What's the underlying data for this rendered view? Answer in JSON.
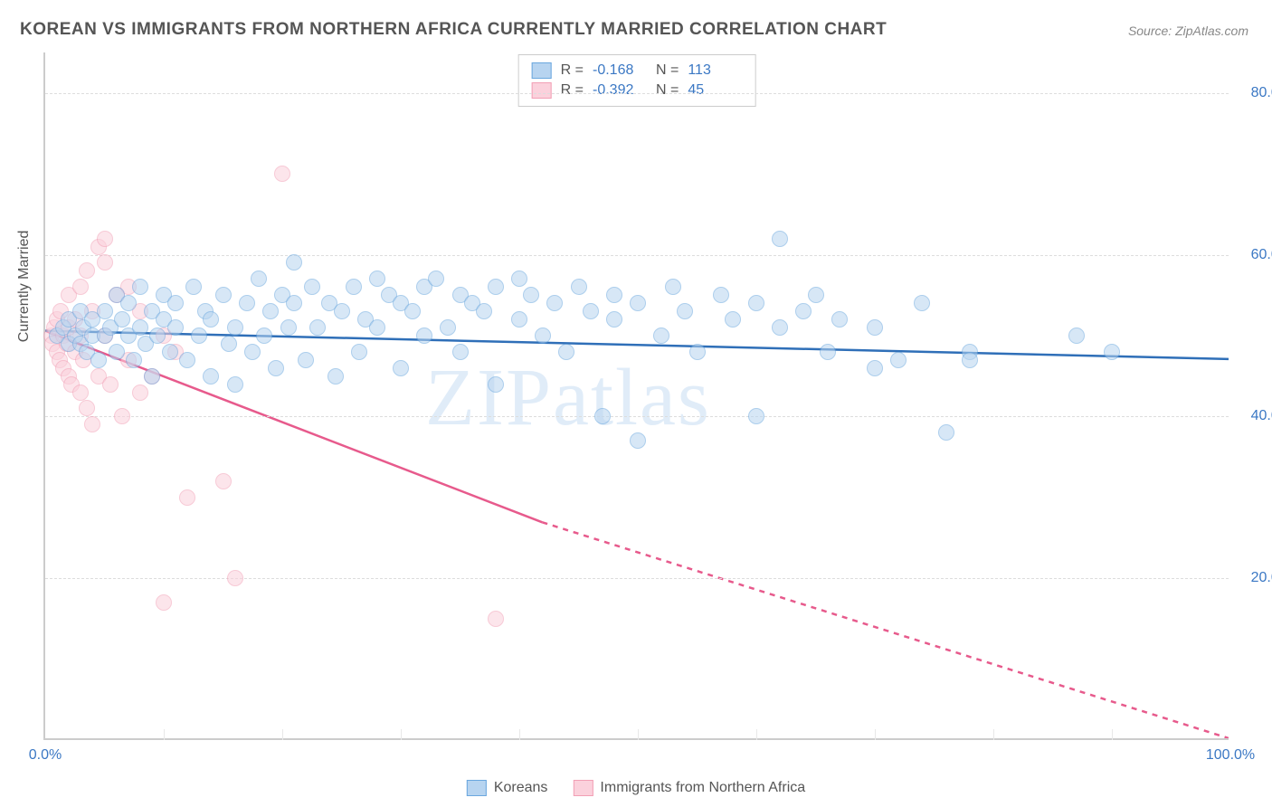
{
  "title": "KOREAN VS IMMIGRANTS FROM NORTHERN AFRICA CURRENTLY MARRIED CORRELATION CHART",
  "source": "Source: ZipAtlas.com",
  "watermark": "ZIPatlas",
  "yaxis_label": "Currently Married",
  "colors": {
    "series1_fill": "#b7d4f0",
    "series1_stroke": "#6aa7de",
    "series1_line": "#2f6fb8",
    "series2_fill": "#fbd1dc",
    "series2_stroke": "#f29fb5",
    "series2_line": "#e75a8c",
    "grid": "#dddddd",
    "axis": "#cccccc",
    "tick_text": "#3b78c4",
    "title_text": "#555555"
  },
  "chart": {
    "type": "scatter",
    "xlim": [
      0,
      100
    ],
    "ylim": [
      0,
      85
    ],
    "yticks": [
      20,
      40,
      60,
      80
    ],
    "ytick_labels": [
      "20.0%",
      "40.0%",
      "60.0%",
      "80.0%"
    ],
    "xticks": [
      0,
      100
    ],
    "xtick_minor": [
      10,
      20,
      30,
      40,
      50,
      60,
      70,
      80,
      90
    ],
    "xtick_labels": [
      "0.0%",
      "100.0%"
    ],
    "marker_radius": 9,
    "marker_opacity": 0.55,
    "line_width": 2.5
  },
  "top_legend": [
    {
      "swatch": "series1",
      "r_label": "R =",
      "r_value": "-0.168",
      "n_label": "N =",
      "n_value": "113"
    },
    {
      "swatch": "series2",
      "r_label": "R =",
      "r_value": "-0.392",
      "n_label": "N =",
      "n_value": "45"
    }
  ],
  "bottom_legend": [
    {
      "swatch": "series1",
      "label": "Koreans"
    },
    {
      "swatch": "series2",
      "label": "Immigrants from Northern Africa"
    }
  ],
  "trend_lines": {
    "series1": {
      "x1": 0,
      "y1": 50.5,
      "x2": 100,
      "y2": 47.0,
      "solid_to_x": 100
    },
    "series2": {
      "x1": 0,
      "y1": 50.5,
      "x2": 100,
      "y2": -6.0,
      "solid_to_x": 42
    }
  },
  "series1_points": [
    [
      1,
      50
    ],
    [
      1.5,
      51
    ],
    [
      2,
      49
    ],
    [
      2,
      52
    ],
    [
      2.5,
      50
    ],
    [
      3,
      53
    ],
    [
      3,
      49
    ],
    [
      3.2,
      51
    ],
    [
      3.5,
      48
    ],
    [
      4,
      50
    ],
    [
      4,
      52
    ],
    [
      4.5,
      47
    ],
    [
      5,
      53
    ],
    [
      5,
      50
    ],
    [
      5.5,
      51
    ],
    [
      6,
      55
    ],
    [
      6,
      48
    ],
    [
      6.5,
      52
    ],
    [
      7,
      50
    ],
    [
      7,
      54
    ],
    [
      7.5,
      47
    ],
    [
      8,
      51
    ],
    [
      8,
      56
    ],
    [
      8.5,
      49
    ],
    [
      9,
      53
    ],
    [
      9,
      45
    ],
    [
      9.5,
      50
    ],
    [
      10,
      52
    ],
    [
      10,
      55
    ],
    [
      10.5,
      48
    ],
    [
      11,
      51
    ],
    [
      11,
      54
    ],
    [
      12,
      47
    ],
    [
      12.5,
      56
    ],
    [
      13,
      50
    ],
    [
      13.5,
      53
    ],
    [
      14,
      45
    ],
    [
      14,
      52
    ],
    [
      15,
      55
    ],
    [
      15.5,
      49
    ],
    [
      16,
      51
    ],
    [
      16,
      44
    ],
    [
      17,
      54
    ],
    [
      17.5,
      48
    ],
    [
      18,
      57
    ],
    [
      18.5,
      50
    ],
    [
      19,
      53
    ],
    [
      19.5,
      46
    ],
    [
      20,
      55
    ],
    [
      20.5,
      51
    ],
    [
      21,
      59
    ],
    [
      21,
      54
    ],
    [
      22,
      47
    ],
    [
      22.5,
      56
    ],
    [
      23,
      51
    ],
    [
      24,
      54
    ],
    [
      24.5,
      45
    ],
    [
      25,
      53
    ],
    [
      26,
      56
    ],
    [
      26.5,
      48
    ],
    [
      27,
      52
    ],
    [
      28,
      51
    ],
    [
      28,
      57
    ],
    [
      29,
      55
    ],
    [
      30,
      46
    ],
    [
      30,
      54
    ],
    [
      31,
      53
    ],
    [
      32,
      50
    ],
    [
      32,
      56
    ],
    [
      33,
      57
    ],
    [
      34,
      51
    ],
    [
      35,
      55
    ],
    [
      35,
      48
    ],
    [
      36,
      54
    ],
    [
      37,
      53
    ],
    [
      38,
      44
    ],
    [
      38,
      56
    ],
    [
      40,
      52
    ],
    [
      40,
      57
    ],
    [
      41,
      55
    ],
    [
      42,
      50
    ],
    [
      43,
      54
    ],
    [
      44,
      48
    ],
    [
      45,
      56
    ],
    [
      46,
      53
    ],
    [
      47,
      40
    ],
    [
      48,
      52
    ],
    [
      48,
      55
    ],
    [
      50,
      37
    ],
    [
      50,
      54
    ],
    [
      52,
      50
    ],
    [
      53,
      56
    ],
    [
      54,
      53
    ],
    [
      55,
      48
    ],
    [
      57,
      55
    ],
    [
      58,
      52
    ],
    [
      60,
      54
    ],
    [
      60,
      40
    ],
    [
      62,
      62
    ],
    [
      62,
      51
    ],
    [
      64,
      53
    ],
    [
      65,
      55
    ],
    [
      66,
      48
    ],
    [
      67,
      52
    ],
    [
      70,
      51
    ],
    [
      70,
      46
    ],
    [
      72,
      47
    ],
    [
      74,
      54
    ],
    [
      76,
      38
    ],
    [
      78,
      48
    ],
    [
      78,
      47
    ],
    [
      87,
      50
    ],
    [
      90,
      48
    ]
  ],
  "series2_points": [
    [
      0.5,
      50
    ],
    [
      0.6,
      49
    ],
    [
      0.8,
      51
    ],
    [
      1,
      48
    ],
    [
      1,
      52
    ],
    [
      1.2,
      47
    ],
    [
      1.3,
      53
    ],
    [
      1.5,
      46
    ],
    [
      1.5,
      50
    ],
    [
      1.8,
      49
    ],
    [
      2,
      51
    ],
    [
      2,
      45
    ],
    [
      2,
      55
    ],
    [
      2.2,
      44
    ],
    [
      2.5,
      52
    ],
    [
      2.5,
      48
    ],
    [
      3,
      50
    ],
    [
      3,
      56
    ],
    [
      3,
      43
    ],
    [
      3.2,
      47
    ],
    [
      3.5,
      58
    ],
    [
      3.5,
      41
    ],
    [
      4,
      53
    ],
    [
      4,
      39
    ],
    [
      4.5,
      61
    ],
    [
      4.5,
      45
    ],
    [
      5,
      50
    ],
    [
      5,
      59
    ],
    [
      5,
      62
    ],
    [
      5.5,
      44
    ],
    [
      6,
      55
    ],
    [
      6.5,
      40
    ],
    [
      7,
      56
    ],
    [
      7,
      47
    ],
    [
      8,
      43
    ],
    [
      8,
      53
    ],
    [
      9,
      45
    ],
    [
      10,
      50
    ],
    [
      11,
      48
    ],
    [
      12,
      30
    ],
    [
      10,
      17
    ],
    [
      15,
      32
    ],
    [
      16,
      20
    ],
    [
      20,
      70
    ],
    [
      38,
      15
    ]
  ]
}
